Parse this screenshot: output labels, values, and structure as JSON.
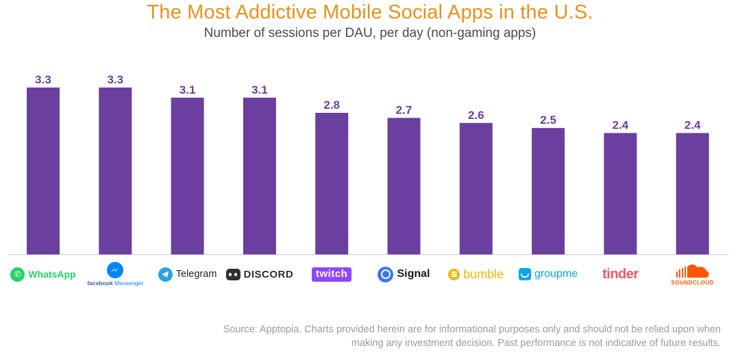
{
  "chart_data": {
    "type": "bar",
    "title": "The Most Addictive Mobile Social Apps in the U.S.",
    "subtitle": "Number of sessions per DAU, per day (non-gaming apps)",
    "categories": [
      "WhatsApp",
      "facebook Messenger",
      "Telegram",
      "DISCORD",
      "twitch",
      "Signal",
      "bumble",
      "groupme",
      "tinder",
      "SOUNDCLOUD"
    ],
    "values": [
      3.3,
      3.3,
      3.1,
      3.1,
      2.8,
      2.7,
      2.6,
      2.5,
      2.4,
      2.4
    ],
    "value_labels": [
      "3.3",
      "3.3",
      "3.1",
      "3.1",
      "2.8",
      "2.7",
      "2.6",
      "2.5",
      "2.4",
      "2.4"
    ],
    "ylim": [
      0,
      3.3
    ],
    "xlabel": "",
    "ylabel": "",
    "grid": false,
    "bar_color": "#6A3FA0"
  },
  "logos": {
    "whatsapp": "WhatsApp",
    "messenger_brand": "facebook",
    "messenger_product": "Messenger",
    "telegram": "Telegram",
    "discord": "DISCORD",
    "twitch": "twitch",
    "signal": "Signal",
    "bumble": "bumble",
    "groupme": "groupme",
    "tinder": "tinder",
    "soundcloud": "SOUNDCLOUD"
  },
  "brand_colors": {
    "whatsapp": "#25D366",
    "messenger": "#0084FF",
    "telegram": "#2AA3DF",
    "discord": "#2C2F33",
    "twitch": "#9146FF",
    "signal": "#3A76F0",
    "bumble": "#F2B705",
    "groupme": "#00A8E8",
    "tinder": "#FD5468",
    "soundcloud": "#FF5500"
  },
  "source": "Source: Apptopia. Charts provided herein are for informational purposes only and should not be relied upon when making any investment decision. Past performance is not indicative of future results."
}
